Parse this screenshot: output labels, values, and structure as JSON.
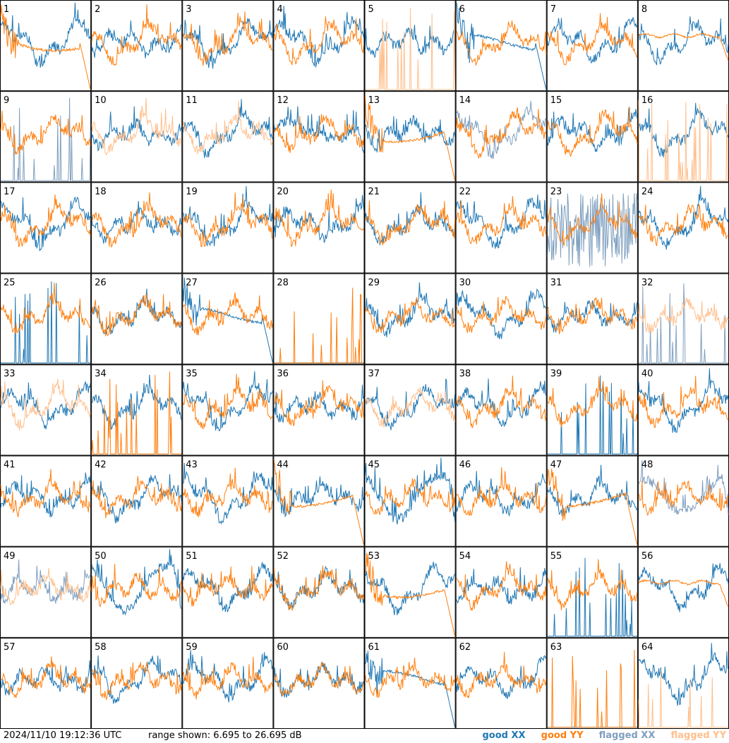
{
  "chart_data": {
    "type": "line",
    "layout": "8x8 small multiples, one panel per tile",
    "ylim_db": [
      6.695,
      26.695
    ],
    "timestamp": "2024/11/10 19:12:36 UTC",
    "range_label": "range shown: 6.695 to 26.695 dB",
    "legend": [
      {
        "key": "good_xx",
        "label": "good XX",
        "color": "#1f77b4"
      },
      {
        "key": "good_yy",
        "label": "good YY",
        "color": "#ff7f0e"
      },
      {
        "key": "flagged_xx",
        "label": "flagged XX",
        "color": "#7f9fbf"
      },
      {
        "key": "flagged_yy",
        "label": "flagged YY",
        "color": "#ffbf8c"
      }
    ],
    "tiles": [
      {
        "n": "1",
        "xx": "good",
        "yy": "good",
        "yy_p": "dropoff"
      },
      {
        "n": "2",
        "xx": "good",
        "yy": "good"
      },
      {
        "n": "3",
        "xx": "good",
        "yy": "good"
      },
      {
        "n": "4",
        "xx": "good",
        "yy": "good"
      },
      {
        "n": "5",
        "xx": "good",
        "yy": "flagged",
        "yy_p": "spikes"
      },
      {
        "n": "6",
        "xx": "good",
        "yy": "good",
        "xx_p": "dropoff"
      },
      {
        "n": "7",
        "xx": "good",
        "yy": "good"
      },
      {
        "n": "8",
        "xx": "good",
        "yy": "good",
        "yy_p": "flat"
      },
      {
        "n": "9",
        "xx": "flagged",
        "yy": "good",
        "xx_p": "spikes"
      },
      {
        "n": "10",
        "xx": "good",
        "yy": "flagged"
      },
      {
        "n": "11",
        "xx": "good",
        "yy": "flagged"
      },
      {
        "n": "12",
        "xx": "good",
        "yy": "good",
        "xx_p": "dip"
      },
      {
        "n": "13",
        "xx": "good",
        "yy": "good",
        "yy_p": "dropoff"
      },
      {
        "n": "14",
        "xx": "flagged",
        "yy": "good"
      },
      {
        "n": "15",
        "xx": "good",
        "yy": "good"
      },
      {
        "n": "16",
        "xx": "good",
        "yy": "flagged",
        "yy_p": "spikes"
      },
      {
        "n": "17",
        "xx": "good",
        "yy": "good"
      },
      {
        "n": "18",
        "xx": "good",
        "yy": "good"
      },
      {
        "n": "19",
        "xx": "good",
        "yy": "good"
      },
      {
        "n": "20",
        "xx": "good",
        "yy": "good"
      },
      {
        "n": "21",
        "xx": "good",
        "yy": "good"
      },
      {
        "n": "22",
        "xx": "good",
        "yy": "good"
      },
      {
        "n": "23",
        "xx": "flagged",
        "yy": "good",
        "xx_p": "noisy"
      },
      {
        "n": "24",
        "xx": "good",
        "yy": "good"
      },
      {
        "n": "25",
        "xx": "good",
        "yy": "good",
        "xx_p": "spikes"
      },
      {
        "n": "26",
        "xx": "good",
        "yy": "good"
      },
      {
        "n": "27",
        "xx": "good",
        "yy": "good",
        "xx_p": "dropoff"
      },
      {
        "n": "28",
        "xx": "good",
        "yy": "good",
        "xx_p": "none",
        "yy_p": "spikes"
      },
      {
        "n": "29",
        "xx": "good",
        "yy": "good"
      },
      {
        "n": "30",
        "xx": "good",
        "yy": "good"
      },
      {
        "n": "31",
        "xx": "good",
        "yy": "good"
      },
      {
        "n": "32",
        "xx": "flagged",
        "yy": "flagged",
        "xx_p": "spikes"
      },
      {
        "n": "33",
        "xx": "good",
        "yy": "flagged"
      },
      {
        "n": "34",
        "xx": "good",
        "yy": "good",
        "yy_p": "spikes"
      },
      {
        "n": "35",
        "xx": "good",
        "yy": "good"
      },
      {
        "n": "36",
        "xx": "good",
        "yy": "good"
      },
      {
        "n": "37",
        "xx": "good",
        "yy": "flagged"
      },
      {
        "n": "38",
        "xx": "good",
        "yy": "good"
      },
      {
        "n": "39",
        "xx": "good",
        "yy": "good",
        "xx_p": "spikes"
      },
      {
        "n": "40",
        "xx": "good",
        "yy": "good"
      },
      {
        "n": "41",
        "xx": "good",
        "yy": "good"
      },
      {
        "n": "42",
        "xx": "good",
        "yy": "good"
      },
      {
        "n": "43",
        "xx": "good",
        "yy": "good"
      },
      {
        "n": "44",
        "xx": "good",
        "yy": "good",
        "yy_p": "dropoff"
      },
      {
        "n": "45",
        "xx": "good",
        "yy": "good",
        "xx_p": "dip"
      },
      {
        "n": "46",
        "xx": "good",
        "yy": "good"
      },
      {
        "n": "47",
        "xx": "good",
        "yy": "good",
        "yy_p": "dropoff"
      },
      {
        "n": "48",
        "xx": "flagged",
        "yy": "good",
        "xx_p": "dip"
      },
      {
        "n": "49",
        "xx": "flagged",
        "yy": "flagged"
      },
      {
        "n": "50",
        "xx": "good",
        "yy": "good",
        "xx_p": "dip"
      },
      {
        "n": "51",
        "xx": "good",
        "yy": "good"
      },
      {
        "n": "52",
        "xx": "good",
        "yy": "good"
      },
      {
        "n": "53",
        "xx": "good",
        "yy": "good",
        "yy_p": "dropoff"
      },
      {
        "n": "54",
        "xx": "good",
        "yy": "good"
      },
      {
        "n": "55",
        "xx": "good",
        "yy": "good",
        "xx_p": "spikes"
      },
      {
        "n": "56",
        "xx": "good",
        "yy": "good",
        "yy_p": "flat"
      },
      {
        "n": "57",
        "xx": "good",
        "yy": "good"
      },
      {
        "n": "58",
        "xx": "good",
        "yy": "good"
      },
      {
        "n": "59",
        "xx": "good",
        "yy": "good"
      },
      {
        "n": "60",
        "xx": "good",
        "yy": "good"
      },
      {
        "n": "61",
        "xx": "good",
        "yy": "good",
        "xx_p": "dropoff"
      },
      {
        "n": "62",
        "xx": "good",
        "yy": "good"
      },
      {
        "n": "63",
        "xx": "good",
        "yy": "good",
        "xx_p": "none",
        "yy_p": "spikes"
      },
      {
        "n": "64",
        "xx": "good",
        "yy": "flagged",
        "yy_p": "spikes"
      }
    ]
  }
}
